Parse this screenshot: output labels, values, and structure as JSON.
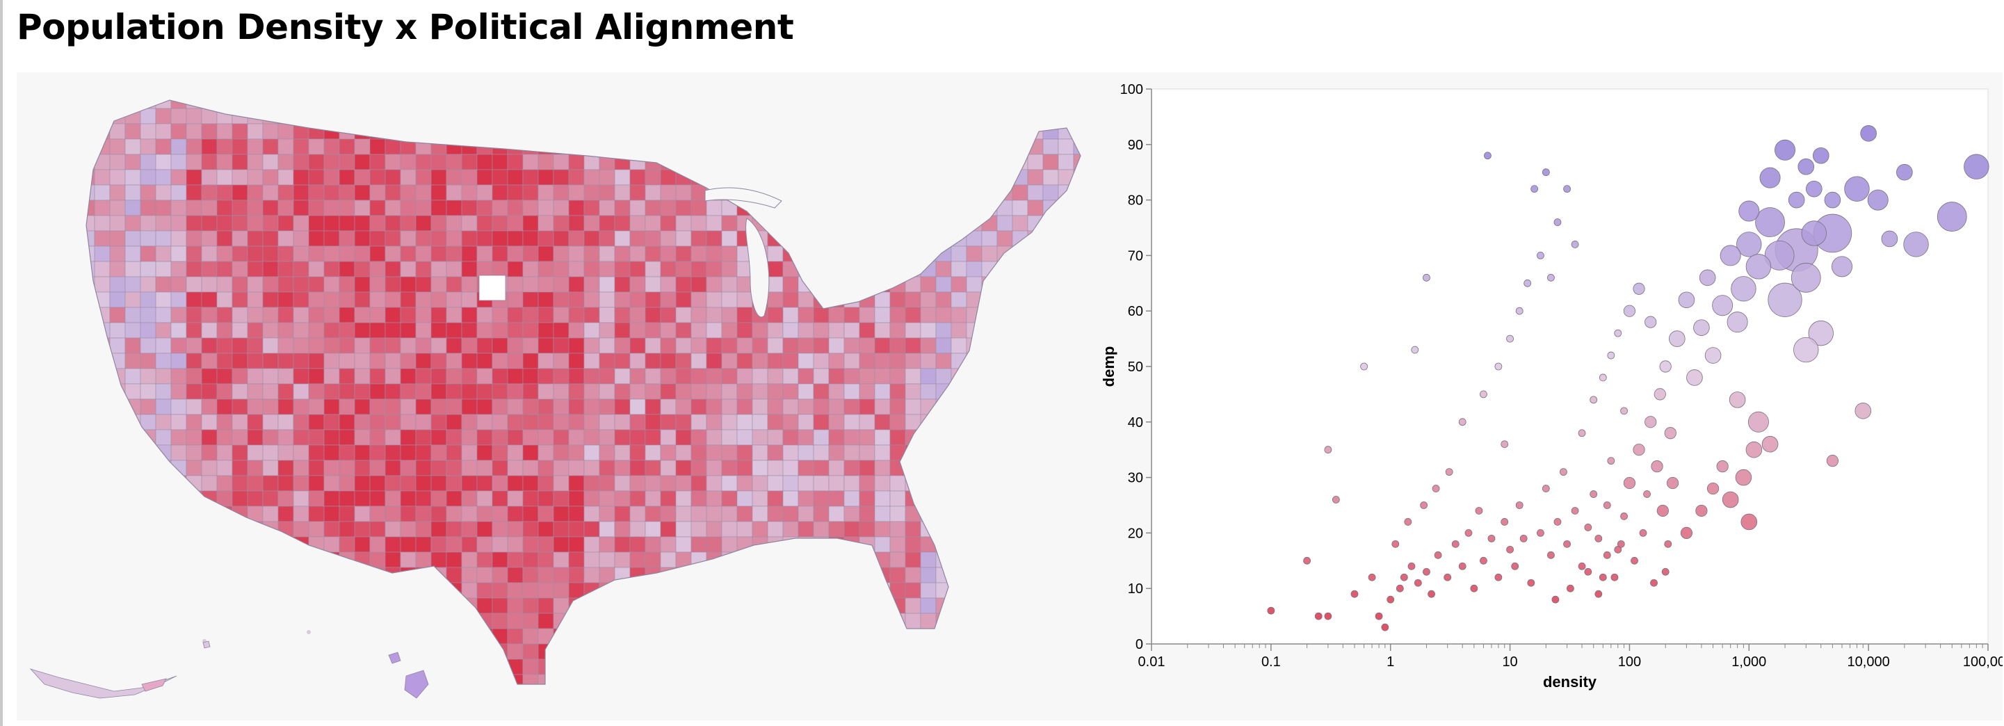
{
  "title": "Population Density x Political Alignment",
  "colors": {
    "republican": "#d9334a",
    "neutral": "#dcc6e0",
    "democrat": "#8a78d6",
    "panel_bg": "#f7f7f7",
    "county_stroke": "#9a8fa8"
  },
  "map": {
    "type": "choropleth",
    "region": "United States counties",
    "color_field": "demp"
  },
  "chart_data": {
    "type": "scatter",
    "xlabel": "density",
    "ylabel": "demp",
    "x_scale": "log",
    "xlim": [
      0.01,
      100000
    ],
    "ylim": [
      0,
      100
    ],
    "x_ticks": [
      0.01,
      0.1,
      1,
      10,
      100,
      1000,
      10000,
      100000
    ],
    "x_tick_labels": [
      "0.01",
      "0.1",
      "1",
      "10",
      "100",
      "1,000",
      "10,000",
      "100,000"
    ],
    "y_ticks": [
      0,
      10,
      20,
      30,
      40,
      50,
      60,
      70,
      80,
      90,
      100
    ],
    "y_tick_labels": [
      "0",
      "10",
      "20",
      "30",
      "40",
      "50",
      "60",
      "70",
      "80",
      "90",
      "100"
    ],
    "size_encoding": "population",
    "color_encoding": "demp",
    "points": [
      [
        0.1,
        6,
        1
      ],
      [
        0.25,
        5,
        1
      ],
      [
        0.3,
        5,
        1
      ],
      [
        0.2,
        15,
        1
      ],
      [
        0.35,
        26,
        1
      ],
      [
        0.3,
        35,
        1
      ],
      [
        0.6,
        50,
        1
      ],
      [
        0.5,
        9,
        1
      ],
      [
        0.7,
        12,
        1
      ],
      [
        0.8,
        5,
        1
      ],
      [
        0.9,
        3,
        1
      ],
      [
        1.0,
        8,
        1
      ],
      [
        1.2,
        10,
        1
      ],
      [
        1.3,
        12,
        1
      ],
      [
        1.5,
        14,
        1
      ],
      [
        1.7,
        11,
        1
      ],
      [
        2.0,
        13,
        1
      ],
      [
        2.2,
        9,
        1
      ],
      [
        2.5,
        16,
        1
      ],
      [
        3.0,
        12,
        1
      ],
      [
        3.5,
        18,
        1
      ],
      [
        1.1,
        18,
        1
      ],
      [
        1.4,
        22,
        1
      ],
      [
        1.9,
        25,
        1
      ],
      [
        2.4,
        28,
        1
      ],
      [
        3.1,
        31,
        1
      ],
      [
        1.6,
        53,
        1
      ],
      [
        2.0,
        66,
        1
      ],
      [
        4.0,
        14,
        1
      ],
      [
        4.5,
        20,
        1
      ],
      [
        5.0,
        10,
        1
      ],
      [
        5.5,
        24,
        1
      ],
      [
        6.0,
        15,
        1
      ],
      [
        7.0,
        19,
        1
      ],
      [
        8.0,
        12,
        1
      ],
      [
        6.5,
        88,
        1
      ],
      [
        9.0,
        22,
        1
      ],
      [
        10.0,
        17,
        1
      ],
      [
        11.0,
        14,
        1
      ],
      [
        12.0,
        25,
        1
      ],
      [
        13.0,
        19,
        1
      ],
      [
        15.0,
        11,
        1
      ],
      [
        16.0,
        82,
        1
      ],
      [
        20.0,
        85,
        1
      ],
      [
        18.0,
        70,
        1
      ],
      [
        25.0,
        76,
        1
      ],
      [
        30.0,
        82,
        1
      ],
      [
        22.0,
        66,
        1
      ],
      [
        35.0,
        72,
        1
      ],
      [
        4.0,
        40,
        1
      ],
      [
        6.0,
        45,
        1
      ],
      [
        8.0,
        50,
        1
      ],
      [
        10.0,
        55,
        1
      ],
      [
        12.0,
        60,
        1
      ],
      [
        14.0,
        65,
        1
      ],
      [
        9.0,
        36,
        1
      ],
      [
        18.0,
        20,
        1
      ],
      [
        20.0,
        28,
        1
      ],
      [
        22.0,
        16,
        1
      ],
      [
        25.0,
        22,
        1
      ],
      [
        28.0,
        31,
        1
      ],
      [
        30.0,
        18,
        1
      ],
      [
        35.0,
        24,
        1
      ],
      [
        40.0,
        14,
        1
      ],
      [
        45.0,
        21,
        1
      ],
      [
        50.0,
        27,
        1
      ],
      [
        55.0,
        19,
        1
      ],
      [
        60.0,
        12,
        1
      ],
      [
        65.0,
        25,
        1
      ],
      [
        70.0,
        33,
        1
      ],
      [
        80.0,
        17,
        1
      ],
      [
        90.0,
        23,
        1
      ],
      [
        100.0,
        29,
        2
      ],
      [
        110.0,
        15,
        1
      ],
      [
        120.0,
        35,
        2
      ],
      [
        130.0,
        20,
        1
      ],
      [
        150.0,
        40,
        2
      ],
      [
        40.0,
        38,
        1
      ],
      [
        50.0,
        44,
        1
      ],
      [
        60.0,
        48,
        1
      ],
      [
        70.0,
        52,
        1
      ],
      [
        80.0,
        56,
        1
      ],
      [
        90.0,
        42,
        1
      ],
      [
        100.0,
        60,
        2
      ],
      [
        120.0,
        64,
        2
      ],
      [
        150.0,
        58,
        2
      ],
      [
        180.0,
        45,
        2
      ],
      [
        200.0,
        50,
        2
      ],
      [
        220.0,
        38,
        2
      ],
      [
        250.0,
        55,
        3
      ],
      [
        300.0,
        62,
        3
      ],
      [
        350.0,
        48,
        3
      ],
      [
        400.0,
        57,
        3
      ],
      [
        450.0,
        66,
        3
      ],
      [
        500.0,
        52,
        3
      ],
      [
        600.0,
        61,
        4
      ],
      [
        700.0,
        70,
        4
      ],
      [
        800.0,
        58,
        4
      ],
      [
        900.0,
        64,
        5
      ],
      [
        1000.0,
        72,
        5
      ],
      [
        1200.0,
        68,
        5
      ],
      [
        1500.0,
        76,
        6
      ],
      [
        1800.0,
        70,
        6
      ],
      [
        2000.0,
        62,
        7
      ],
      [
        2500.0,
        71,
        9
      ],
      [
        3000.0,
        66,
        6
      ],
      [
        3500.0,
        74,
        5
      ],
      [
        4000.0,
        56,
        5
      ],
      [
        5000.0,
        74,
        8
      ],
      [
        6000.0,
        68,
        4
      ],
      [
        1000.0,
        78,
        4
      ],
      [
        1500.0,
        84,
        4
      ],
      [
        2000.0,
        89,
        4
      ],
      [
        2500.0,
        80,
        3
      ],
      [
        3000.0,
        86,
        3
      ],
      [
        3500.0,
        82,
        3
      ],
      [
        4000.0,
        88,
        3
      ],
      [
        5000.0,
        80,
        3
      ],
      [
        8000.0,
        82,
        5
      ],
      [
        10000.0,
        92,
        3
      ],
      [
        12000.0,
        80,
        4
      ],
      [
        15000.0,
        73,
        3
      ],
      [
        20000.0,
        85,
        3
      ],
      [
        25000.0,
        72,
        5
      ],
      [
        50000.0,
        77,
        6
      ],
      [
        80000.0,
        86,
        5
      ],
      [
        9000.0,
        42,
        3
      ],
      [
        3000.0,
        53,
        5
      ],
      [
        1200.0,
        40,
        4
      ],
      [
        1500.0,
        36,
        3
      ],
      [
        800.0,
        44,
        3
      ],
      [
        600.0,
        32,
        2
      ],
      [
        500.0,
        28,
        2
      ],
      [
        400.0,
        24,
        2
      ],
      [
        300.0,
        20,
        2
      ],
      [
        700.0,
        26,
        3
      ],
      [
        1000.0,
        22,
        3
      ],
      [
        900.0,
        30,
        3
      ],
      [
        1100.0,
        35,
        3
      ],
      [
        5000.0,
        33,
        2
      ],
      [
        200.0,
        13,
        1
      ],
      [
        160.0,
        11,
        1
      ],
      [
        140.0,
        27,
        1
      ],
      [
        170.0,
        32,
        2
      ],
      [
        190.0,
        24,
        2
      ],
      [
        210.0,
        18,
        1
      ],
      [
        230.0,
        29,
        2
      ],
      [
        24.0,
        8,
        1
      ],
      [
        32.0,
        10,
        1
      ],
      [
        45.0,
        13,
        1
      ],
      [
        55.0,
        9,
        1
      ],
      [
        65.0,
        16,
        1
      ],
      [
        75.0,
        12,
        1
      ],
      [
        85.0,
        18,
        1
      ]
    ]
  }
}
